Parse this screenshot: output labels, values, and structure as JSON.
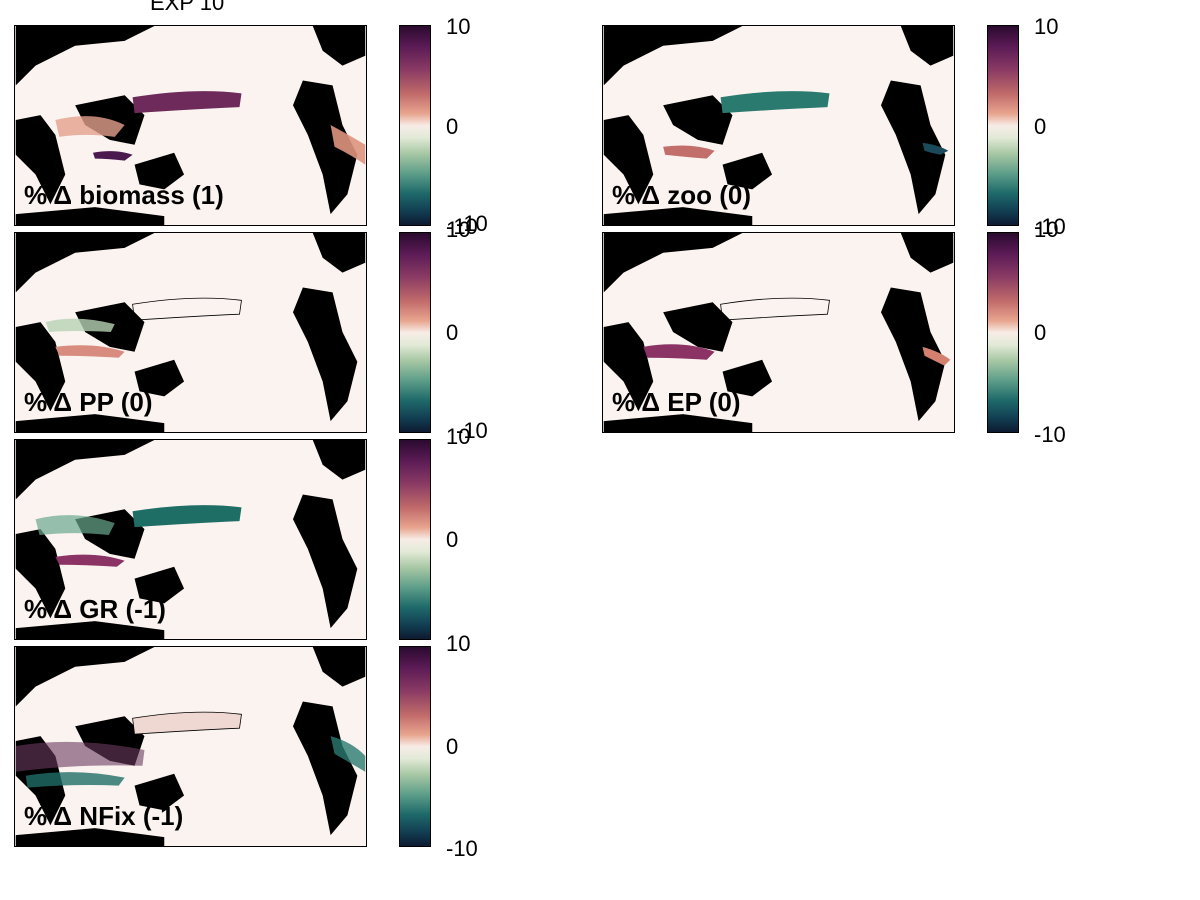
{
  "figure": {
    "title": "EXP 10"
  },
  "panels": [
    {
      "label": "% Δ biomass (1)",
      "cb_max": "10",
      "cb_mid": "0",
      "cb_min": "-10"
    },
    {
      "label": "% Δ zoo (0)",
      "cb_max": "10",
      "cb_mid": "0",
      "cb_min": "-10"
    },
    {
      "label": "% Δ PP (0)",
      "cb_max": "10",
      "cb_mid": "0",
      "cb_min": "-10"
    },
    {
      "label": "% Δ EP (0)",
      "cb_max": "10",
      "cb_mid": "0",
      "cb_min": "-10"
    },
    {
      "label": "% Δ GR (-1)",
      "cb_max": "10",
      "cb_mid": "0",
      "cb_min": "-10"
    },
    {
      "label": "% Δ NFix (-1)",
      "cb_max": "10",
      "cb_mid": "0",
      "cb_min": "-10"
    }
  ],
  "colors": {
    "land": "#000000",
    "ocean_neutral": "#fbf3f0",
    "positive_anomaly": "#7a2a5e",
    "negative_anomaly": "#1f6e66"
  }
}
